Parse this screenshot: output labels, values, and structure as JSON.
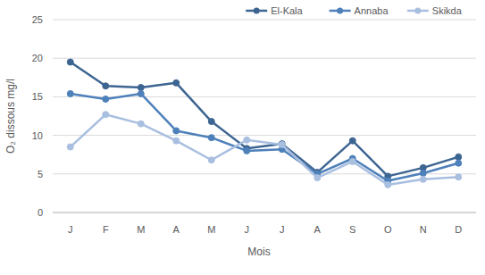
{
  "chart_data": {
    "type": "line",
    "x_label": "Mois",
    "y_label": "O₂ dissous mg/l",
    "categories": [
      "J",
      "F",
      "M",
      "A",
      "M",
      "J",
      "J",
      "A",
      "S",
      "O",
      "N",
      "D"
    ],
    "series": [
      {
        "name": "El-Kala",
        "color": "#3d6592",
        "marker": "circle",
        "values": [
          19.5,
          16.4,
          16.2,
          16.8,
          11.8,
          8.3,
          8.9,
          5.2,
          9.3,
          4.7,
          5.8,
          7.2
        ]
      },
      {
        "name": "Annaba",
        "color": "#4e80ba",
        "marker": "circle",
        "values": [
          15.4,
          14.7,
          15.4,
          10.6,
          9.7,
          8.0,
          8.2,
          5.0,
          7.0,
          4.1,
          5.1,
          6.4
        ]
      },
      {
        "name": "Skikda",
        "color": "#a9bfe0",
        "marker": "circle",
        "values": [
          8.5,
          12.7,
          11.5,
          9.3,
          6.8,
          9.4,
          8.8,
          4.5,
          6.6,
          3.6,
          4.3,
          4.6
        ]
      }
    ],
    "ylim": [
      0,
      25
    ],
    "yticks": [
      0,
      5,
      10,
      15,
      20,
      25
    ],
    "grid": true,
    "legend": "top-right"
  }
}
